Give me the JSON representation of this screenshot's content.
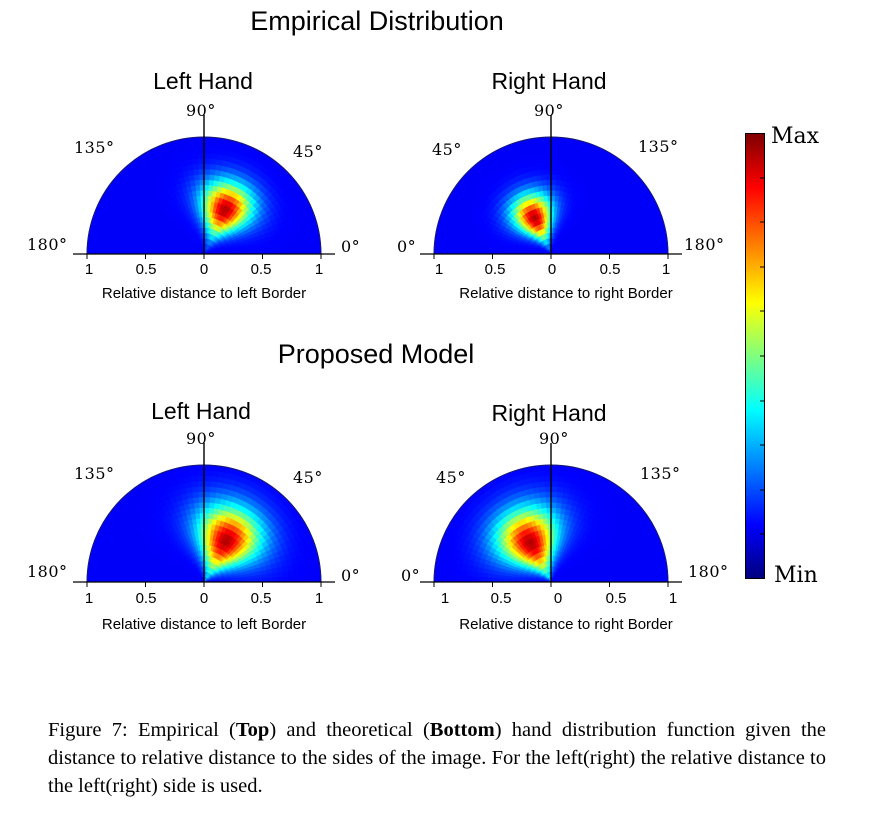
{
  "sections": [
    {
      "title": "Empirical Distribution",
      "panels": [
        {
          "title": "Left Hand",
          "side": "left",
          "angle_labels": {
            "a90": "90°",
            "a135": "135°",
            "a45": "45°",
            "a180": "180°",
            "a0": "0°"
          },
          "ticks": [
            "1",
            "0.5",
            "0",
            "0.5",
            "1"
          ],
          "xlabel": "Relative distance to left Border",
          "hotspot": {
            "angle_deg": 65,
            "radius": 0.42,
            "spread_r": 0.16,
            "spread_t": 0.32
          }
        },
        {
          "title": "Right Hand",
          "side": "right",
          "angle_labels": {
            "a90": "90°",
            "a135": "135°",
            "a45": "45°",
            "a180": "180°",
            "a0": "0°"
          },
          "ticks": [
            "1",
            "0.5",
            "0",
            "0.5",
            "1"
          ],
          "xlabel": "Relative distance to right Border",
          "hotspot": {
            "angle_deg": 115,
            "radius": 0.34,
            "spread_r": 0.14,
            "spread_t": 0.3
          }
        }
      ]
    },
    {
      "title": "Proposed Model",
      "panels": [
        {
          "title": "Left Hand",
          "side": "left",
          "angle_labels": {
            "a90": "90°",
            "a135": "135°",
            "a45": "45°",
            "a180": "180°",
            "a0": "0°"
          },
          "ticks": [
            "1",
            "0.5",
            "0",
            "0.5",
            "1"
          ],
          "xlabel": "Relative distance to left Border",
          "hotspot": {
            "angle_deg": 62,
            "radius": 0.4,
            "spread_r": 0.2,
            "spread_t": 0.4
          }
        },
        {
          "title": "Right Hand",
          "side": "right",
          "angle_labels": {
            "a90": "90°",
            "a135": "135°",
            "a45": "45°",
            "a180": "180°",
            "a0": "0°"
          },
          "ticks": [
            "1",
            "0.5",
            "0",
            "0.5",
            "1"
          ],
          "xlabel": "Relative distance to right Border",
          "hotspot": {
            "angle_deg": 118,
            "radius": 0.38,
            "spread_r": 0.2,
            "spread_t": 0.4
          }
        }
      ]
    }
  ],
  "colorbar": {
    "max_label": "Max",
    "min_label": "Min",
    "colormap": "jet"
  },
  "caption": {
    "label": "Figure 7:",
    "part1": " Empirical (",
    "bold1": "Top",
    "part2": ") and theoretical (",
    "bold2": "Bottom",
    "part3": ") hand distribution function given the distance to relative distance to the sides of the image. For the left(right) the relative distance to the left(right) side is used."
  },
  "colors": {
    "background": "#00008f",
    "axis": "#000000"
  }
}
